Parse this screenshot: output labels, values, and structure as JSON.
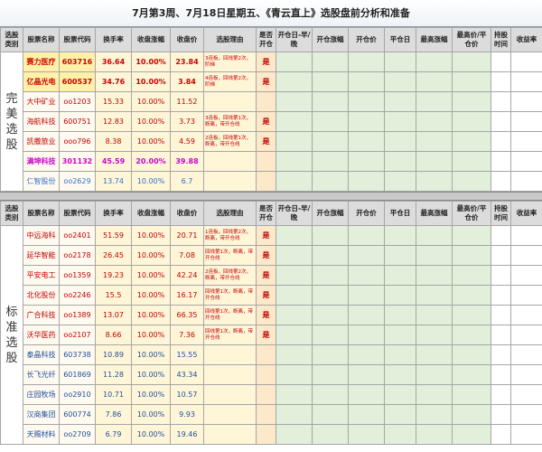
{
  "title": "7月第3周、7月18日星期五、《青云直上》选股盘前分析和准备",
  "columns": [
    "选股类别",
    "股票名称",
    "股票代码",
    "换手率",
    "收盘涨幅",
    "收盘价",
    "选股理由",
    "是否开仓",
    "开仓日-早/晚",
    "开仓涨幅",
    "开仓价",
    "平仓日",
    "最高涨幅",
    "最高价/平仓价",
    "持股时间",
    "收益率"
  ],
  "sections": [
    {
      "category": "完美选股",
      "rows": [
        {
          "name": "赛力医疗",
          "code": "603716",
          "turnover": "36.64",
          "change": "10.00%",
          "close": "23.84",
          "reason": "3连板，回线第2次，阶梯",
          "open": "是",
          "color": "#d00000",
          "bold": true,
          "fill": "#fff2a8"
        },
        {
          "name": "亿晶光电",
          "code": "600537",
          "turnover": "34.76",
          "change": "10.00%",
          "close": "3.84",
          "reason": "4连板，回线第2次，阶梯",
          "open": "是",
          "color": "#d00000",
          "bold": true,
          "fill": "#fff2a8"
        },
        {
          "name": "大中矿业",
          "code": "oo1203",
          "turnover": "15.33",
          "change": "10.00%",
          "close": "11.52",
          "color": "#c00000"
        },
        {
          "name": "海航科技",
          "code": "600751",
          "turnover": "12.83",
          "change": "10.00%",
          "close": "3.73",
          "reason": "3连板，回线第1次，断离，带开仓线",
          "open": "是",
          "color": "#c00000"
        },
        {
          "name": "凯撒旅业",
          "code": "ooo796",
          "turnover": "8.38",
          "change": "10.00%",
          "close": "4.59",
          "reason": "2连板，回线第1次，断离，带开仓线",
          "open": "是",
          "color": "#c00000"
        },
        {
          "name": "满坤科技",
          "code": "301132",
          "turnover": "45.59",
          "change": "20.00%",
          "close": "39.88",
          "color": "#d000d0",
          "bold": true
        },
        {
          "name": "仁智股份",
          "code": "oo2629",
          "turnover": "13.74",
          "change": "10.00%",
          "close": "6.7",
          "color": "#2f6fd0"
        }
      ]
    },
    {
      "category": "标准选股",
      "rows": [
        {
          "name": "中远海科",
          "code": "oo2401",
          "turnover": "51.59",
          "change": "10.00%",
          "close": "20.71",
          "reason": "1连板，回线第2次，断离，带开仓线",
          "open": "是",
          "color": "#c00000"
        },
        {
          "name": "延华智能",
          "code": "oo2178",
          "turnover": "26.45",
          "change": "10.00%",
          "close": "7.08",
          "reason": "回线第1次，断离，带开仓线",
          "open": "是",
          "color": "#c00000"
        },
        {
          "name": "平安电工",
          "code": "oo1359",
          "turnover": "19.23",
          "change": "10.00%",
          "close": "42.24",
          "reason": "2连板，回线第2次，断离，带开仓线",
          "open": "是",
          "color": "#c00000"
        },
        {
          "name": "北化股份",
          "code": "oo2246",
          "turnover": "15.5",
          "change": "10.00%",
          "close": "16.17",
          "reason": "回线第1次，断离，带开仓线",
          "open": "是",
          "color": "#c00000"
        },
        {
          "name": "广合科技",
          "code": "oo1389",
          "turnover": "13.07",
          "change": "10.00%",
          "close": "66.35",
          "reason": "回线第1次，断离，带开仓线",
          "open": "是",
          "color": "#c00000"
        },
        {
          "name": "沃华医药",
          "code": "oo2107",
          "turnover": "8.66",
          "change": "10.00%",
          "close": "7.36",
          "reason": "回线第1次，断离，带开仓线",
          "open": "是",
          "color": "#c00000"
        },
        {
          "name": "泰晶科技",
          "code": "603738",
          "turnover": "10.89",
          "change": "10.00%",
          "close": "15.55",
          "color": "#1f4e9c"
        },
        {
          "name": "长飞光纤",
          "code": "601869",
          "turnover": "11.28",
          "change": "10.00%",
          "close": "43.34",
          "color": "#1f4e9c"
        },
        {
          "name": "庄园牧场",
          "code": "oo2910",
          "turnover": "10.71",
          "change": "10.00%",
          "close": "10.57",
          "color": "#1f4e9c"
        },
        {
          "name": "汉商集团",
          "code": "600774",
          "turnover": "7.86",
          "change": "10.00%",
          "close": "9.93",
          "color": "#1f4e9c"
        },
        {
          "name": "天赐材料",
          "code": "oo2709",
          "turnover": "6.79",
          "change": "10.00%",
          "close": "19.46",
          "color": "#1f4e9c"
        }
      ]
    }
  ]
}
